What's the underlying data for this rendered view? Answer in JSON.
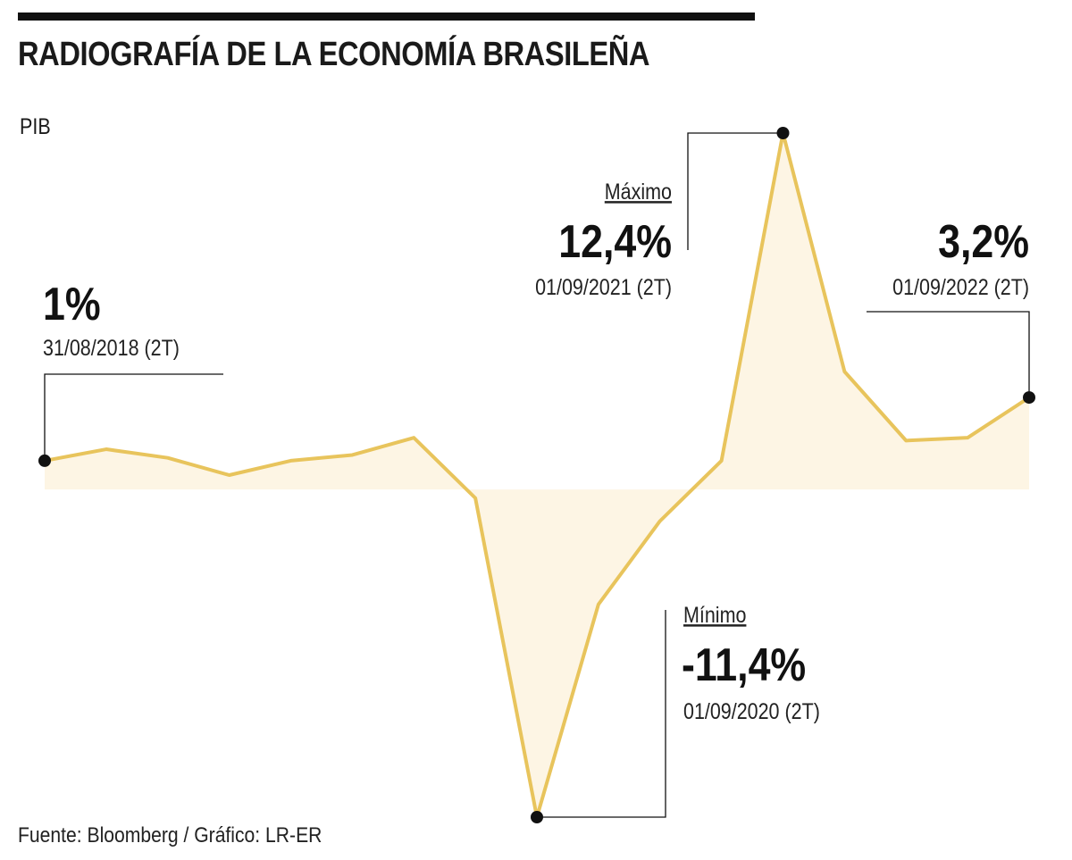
{
  "title": "RADIOGRAFÍA DE LA ECONOMÍA BRASILEÑA",
  "subtitle": "PIB",
  "source": "Fuente: Bloomberg / Gráfico: LR-ER",
  "colors": {
    "line": "#e8c45c",
    "fill": "#fdf5e4",
    "rule": "#111111",
    "text": "#1a1a1a"
  },
  "chart_data": {
    "type": "area",
    "series": [
      {
        "name": "PIB",
        "values": [
          1.0,
          1.4,
          1.1,
          0.5,
          1.0,
          1.2,
          1.8,
          -0.3,
          -11.4,
          -4.0,
          -1.1,
          1.0,
          12.4,
          4.1,
          1.7,
          1.8,
          3.2
        ]
      }
    ],
    "ylim": [
      -11.4,
      12.4
    ],
    "xlabel": "",
    "ylabel": "",
    "annotations": [
      {
        "index": 0,
        "value_label": "1%",
        "date": "31/08/2018 (2T)",
        "tag": ""
      },
      {
        "index": 12,
        "value_label": "12,4%",
        "date": "01/09/2021 (2T)",
        "tag": "Máximo"
      },
      {
        "index": 16,
        "value_label": "3,2%",
        "date": "01/09/2022 (2T)",
        "tag": ""
      },
      {
        "index": 8,
        "value_label": "-11,4%",
        "date": "01/09/2020 (2T)",
        "tag": "Mínimo"
      }
    ]
  }
}
